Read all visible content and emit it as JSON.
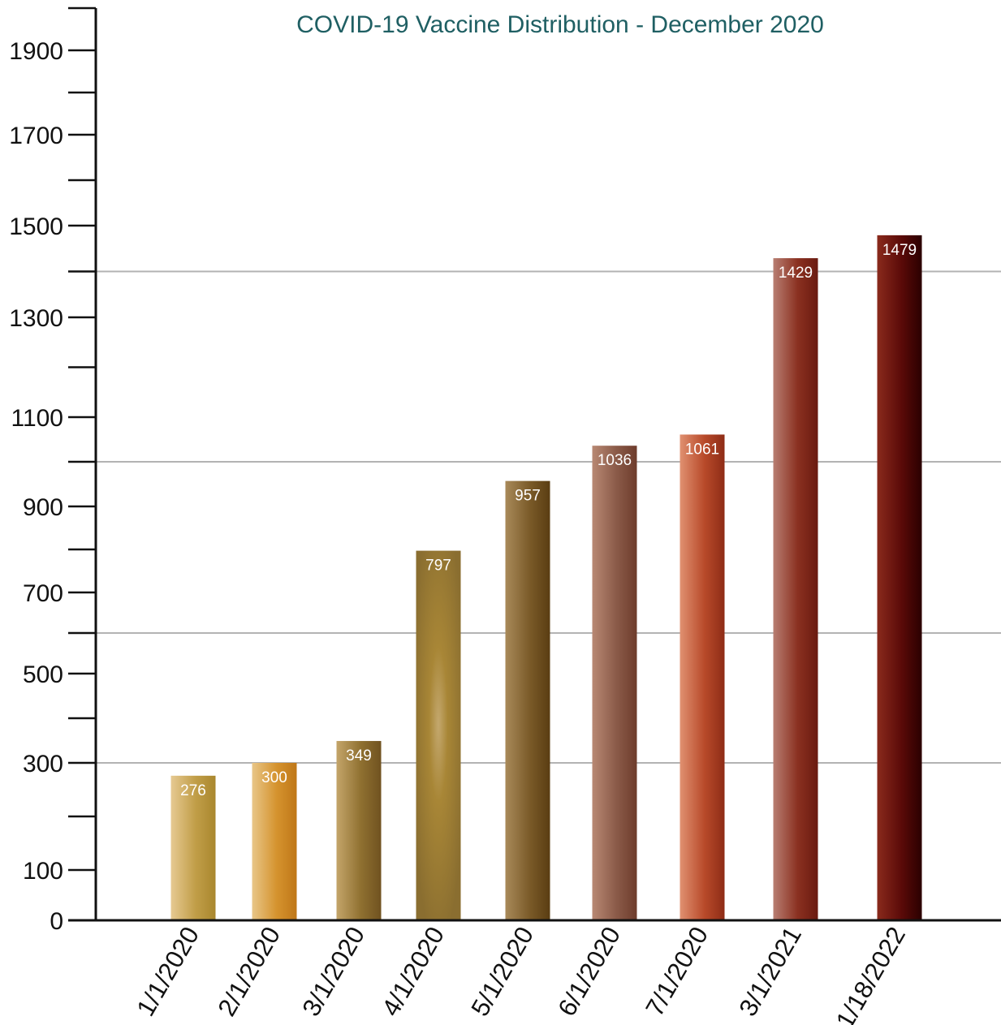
{
  "chart_data": {
    "type": "bar",
    "title": "COVID-19 Vaccine Distribution - December 2020",
    "xlabel": "",
    "ylabel": "",
    "categories": [
      "1/1/2020",
      "2/1/2020",
      "3/1/2020",
      "4/1/2020",
      "5/1/2020",
      "6/1/2020",
      "7/1/2020",
      "3/1/2021",
      "1/18/2022"
    ],
    "values": [
      276,
      300,
      349,
      797,
      957,
      1036,
      1061,
      1429,
      1479
    ],
    "value_labels": [
      "276",
      "300",
      "349",
      "797",
      "957",
      "1036",
      "1061",
      "1429",
      "1479"
    ],
    "y_tick_labels": [
      "0",
      "100",
      "300",
      "500",
      "700",
      "900",
      "1100",
      "1300",
      "1500",
      "1700",
      "1900"
    ],
    "ylim": [
      0,
      2000
    ],
    "gridlines_y": [
      300,
      600,
      1000,
      1400
    ],
    "grid": "horizontal",
    "legend": "none",
    "colors": {
      "title": "#1f5f63",
      "axis": "#111111",
      "grid": "#b3b3b3",
      "value_label": "#ffffff",
      "bars": [
        [
          "#e6c992",
          "#c19e48",
          "#a9872e"
        ],
        [
          "#e8c688",
          "#d5932e",
          "#bf7718"
        ],
        [
          "#c4a56a",
          "#8f7030",
          "#705220"
        ],
        [
          "#8a6e30",
          "#c4a86e",
          "#8a6e30"
        ],
        [
          "#a98a5a",
          "#7a5a28",
          "#5a3d12"
        ],
        [
          "#b88873",
          "#8a5a48",
          "#6e3c2c"
        ],
        [
          "#e09070",
          "#b84a2a",
          "#8e2c16"
        ],
        [
          "#b87e72",
          "#8a3020",
          "#6a1a10"
        ],
        [
          "#8a2a1c",
          "#5a0a08",
          "#2a0000"
        ]
      ]
    }
  }
}
